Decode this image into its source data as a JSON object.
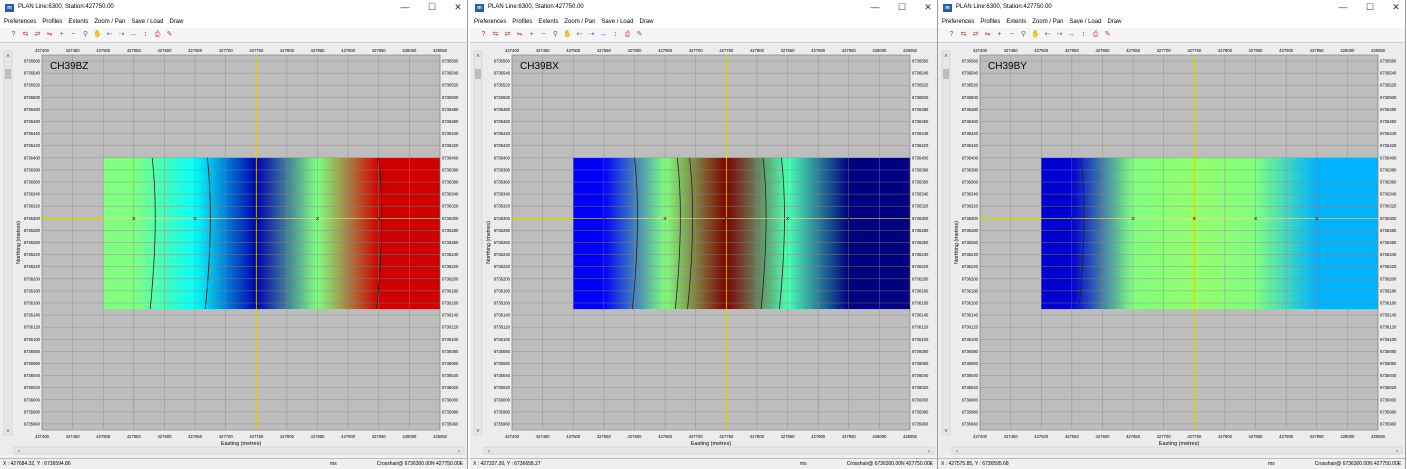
{
  "colors": {
    "grid": "#888888",
    "axis_bg": "#d4d4d4",
    "crosshair": "#d8d800"
  },
  "menu": [
    "Preferences",
    "Profiles",
    "Extents",
    "Zoom / Pan",
    "Save / Load",
    "Draw"
  ],
  "toolbar_icons": [
    "help-icon",
    "profile-left-icon",
    "profile-right-icon",
    "profile-select-icon",
    "add-icon",
    "minus-icon",
    "zoom-icon",
    "pan-icon",
    "arrow-left-icon",
    "arrow-right-icon",
    "expand-icon",
    "contract-icon",
    "print-icon",
    "eraser-icon"
  ],
  "window_controls": {
    "minimize": "—",
    "maximize": "☐",
    "close": "✕"
  },
  "app_icon_text": "m",
  "windows": [
    {
      "title": "PLAN Line:6300, Station:427750.00",
      "status_left": "X : 427684.32, Y : 6736594.86",
      "status_ms": "ms",
      "status_right": "Crosshair@ 6736300.00N 427750.00E",
      "chart_data": {
        "type": "heatmap",
        "label": "CH39BZ",
        "xlabel": "Easting (metres)",
        "ylabel": "Northing (metres)",
        "xlim": [
          427400,
          428050
        ],
        "ylim": [
          6735950,
          6736570
        ],
        "x_ticks": [
          427400,
          427450,
          427500,
          427550,
          427600,
          427650,
          427700,
          427750,
          427800,
          427850,
          427900,
          427950,
          428000,
          428050
        ],
        "y_ticks": [
          6736560,
          6736540,
          6736520,
          6736500,
          6736480,
          6736460,
          6736440,
          6736420,
          6736400,
          6736380,
          6736360,
          6736340,
          6736320,
          6736300,
          6736280,
          6736260,
          6736240,
          6736220,
          6736200,
          6736180,
          6736160,
          6736140,
          6736120,
          6736100,
          6736080,
          6736060,
          6736040,
          6736020,
          6736000,
          6735980,
          6735960
        ],
        "grid": true,
        "data_extent": {
          "x": [
            427500,
            428050
          ],
          "y": [
            6736150,
            6736400
          ]
        },
        "stations": [
          427550,
          427650,
          427750,
          427850,
          427950
        ],
        "station_northing": 6736300,
        "crosshair": {
          "x": 427750,
          "y": 6736300
        },
        "profile_values": [
          0.5,
          0.38,
          0.05,
          0.5,
          0.92
        ],
        "contour_x": [
          427580,
          427670,
          427950
        ]
      }
    },
    {
      "title": "PLAN Line:6300, Station:427750.00",
      "status_left": "X : 427337.20, Y : 6736658.27",
      "status_ms": "ms",
      "status_right": "Crosshair@ 6736300.00N 427750.00E",
      "chart_data": {
        "type": "heatmap",
        "label": "CH39BX",
        "xlabel": "Easting (metres)",
        "ylabel": "Northing (metres)",
        "xlim": [
          427400,
          428050
        ],
        "ylim": [
          6735950,
          6736570
        ],
        "x_ticks": [
          427400,
          427450,
          427500,
          427550,
          427600,
          427650,
          427700,
          427750,
          427800,
          427850,
          427900,
          427950,
          428000,
          428050
        ],
        "y_ticks": [
          6736560,
          6736540,
          6736520,
          6736500,
          6736480,
          6736460,
          6736440,
          6736420,
          6736400,
          6736380,
          6736360,
          6736340,
          6736320,
          6736300,
          6736280,
          6736260,
          6736240,
          6736220,
          6736200,
          6736180,
          6736160,
          6736140,
          6736120,
          6736100,
          6736080,
          6736060,
          6736040,
          6736020,
          6736000,
          6735980,
          6735960
        ],
        "grid": true,
        "data_extent": {
          "x": [
            427500,
            428050
          ],
          "y": [
            6736150,
            6736400
          ]
        },
        "stations": [
          427550,
          427650,
          427750,
          427850,
          427950
        ],
        "station_northing": 6736300,
        "crosshair": {
          "x": 427750,
          "y": 6736300
        },
        "profile_values": [
          0.12,
          0.5,
          1.0,
          0.45,
          0.0
        ],
        "contour_x": [
          427600,
          427670,
          427690,
          427810,
          427840
        ]
      }
    },
    {
      "title": "PLAN Line:6300, Station:427750.00",
      "status_left": "X : 427575.85, Y : 6736595.68",
      "status_ms": "ms",
      "status_right": "Crosshair@ 6736300.00N 427750.00E",
      "chart_data": {
        "type": "heatmap",
        "label": "CH39BY",
        "xlabel": "Easting (metres)",
        "ylabel": "Northing (metres)",
        "xlim": [
          427400,
          428050
        ],
        "ylim": [
          6735950,
          6736570
        ],
        "x_ticks": [
          427400,
          427450,
          427500,
          427550,
          427600,
          427650,
          427700,
          427750,
          427800,
          427850,
          427900,
          427950,
          428000,
          428050
        ],
        "y_ticks": [
          6736560,
          6736540,
          6736520,
          6736500,
          6736480,
          6736460,
          6736440,
          6736420,
          6736400,
          6736380,
          6736360,
          6736340,
          6736320,
          6736300,
          6736280,
          6736260,
          6736240,
          6736220,
          6736200,
          6736180,
          6736160,
          6736140,
          6736120,
          6736100,
          6736080,
          6736060,
          6736040,
          6736020,
          6736000,
          6735980,
          6735960
        ],
        "grid": true,
        "data_extent": {
          "x": [
            427500,
            428050
          ],
          "y": [
            6736150,
            6736400
          ]
        },
        "stations": [
          427550,
          427650,
          427750,
          427850,
          427950
        ],
        "station_northing": 6736300,
        "crosshair": {
          "x": 427750,
          "y": 6736300
        },
        "profile_values": [
          0.08,
          0.5,
          0.52,
          0.5,
          0.3
        ],
        "contour_x": [
          427565
        ]
      }
    }
  ]
}
